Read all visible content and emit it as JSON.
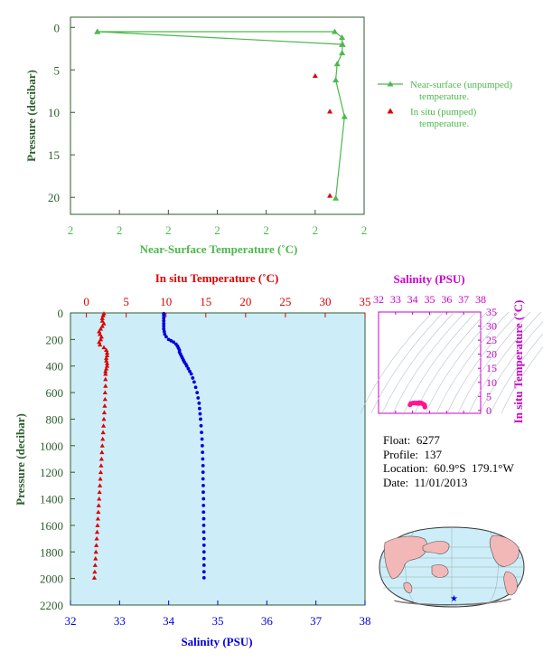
{
  "colors": {
    "green": "#4db84d",
    "axis_green": "#2e5e2e",
    "red": "#dd0000",
    "blue": "#0000dd",
    "magenta": "#cc00cc",
    "panel_bg": "#cdeef8",
    "land": "#f2b7b7"
  },
  "info": {
    "float": "Float:  6277",
    "profile": "Profile:  137",
    "location": "Location:  60.9°S  179.1°W",
    "date": "Date:  11/01/2013"
  },
  "footnote": "",
  "chart_data": [
    {
      "type": "line",
      "xlabel": "Near-Surface Temperature (˚C)",
      "ylabel": "Pressure (decibar)",
      "x_tick_labels": [
        "2",
        "2",
        "2",
        "2",
        "2",
        "2",
        "2"
      ],
      "y_ticks": [
        0,
        5,
        10,
        15,
        20
      ],
      "ylim": [
        22,
        -1.2
      ],
      "xlim": [
        1.8,
        2.4
      ],
      "y_inverted": true,
      "grid": false,
      "legend_position": "right",
      "series": [
        {
          "name": "Near-surface (unpumped) temperature.",
          "marker": "triangle-line",
          "points": [
            [
              1.855,
              0.5
            ],
            [
              2.34,
              0.5
            ],
            [
              2.355,
              1.2
            ],
            [
              2.355,
              2.0
            ],
            [
              1.855,
              0.5
            ],
            [
              2.356,
              2.0
            ],
            [
              2.355,
              3.0
            ],
            [
              2.345,
              4.3
            ],
            [
              2.342,
              6.2
            ],
            [
              2.36,
              10.5
            ],
            [
              2.342,
              20.1
            ]
          ]
        },
        {
          "name": "In situ (pumped) temperature.",
          "marker": "triangle",
          "points": [
            [
              2.3,
              5.7
            ],
            [
              2.33,
              9.9
            ],
            [
              2.33,
              19.8
            ]
          ]
        }
      ]
    },
    {
      "type": "scatter",
      "title_top": "In situ Temperature (˚C)",
      "xlabel": "Salinity (PSU)",
      "ylabel": "Pressure (decibar)",
      "top_axis_ticks": [
        0,
        5,
        10,
        15,
        20,
        25,
        30,
        35
      ],
      "bottom_axis_ticks": [
        32,
        33,
        34,
        35,
        36,
        37,
        38
      ],
      "y_ticks": [
        0,
        200,
        400,
        600,
        800,
        1000,
        1200,
        1400,
        1600,
        1800,
        2000,
        2200
      ],
      "temp_xlim": [
        -2,
        35
      ],
      "sal_xlim": [
        32,
        38
      ],
      "ylim": [
        2200,
        0
      ],
      "background": "light-blue",
      "series": [
        {
          "name": "In situ Temperature",
          "color": "red",
          "marker": "triangle",
          "points": [
            [
              2.2,
              5
            ],
            [
              2.1,
              20
            ],
            [
              2.0,
              40
            ],
            [
              2.0,
              60
            ],
            [
              2.2,
              80
            ],
            [
              2.0,
              100
            ],
            [
              1.8,
              120
            ],
            [
              1.6,
              140
            ],
            [
              1.7,
              160
            ],
            [
              1.9,
              180
            ],
            [
              1.8,
              200
            ],
            [
              1.6,
              220
            ],
            [
              1.7,
              240
            ],
            [
              2.2,
              260
            ],
            [
              2.5,
              280
            ],
            [
              2.6,
              300
            ],
            [
              2.6,
              320
            ],
            [
              2.5,
              340
            ],
            [
              2.5,
              360
            ],
            [
              2.6,
              380
            ],
            [
              2.6,
              400
            ],
            [
              2.5,
              420
            ],
            [
              2.4,
              440
            ],
            [
              2.4,
              460
            ],
            [
              2.4,
              500
            ],
            [
              2.4,
              550
            ],
            [
              2.35,
              600
            ],
            [
              2.35,
              650
            ],
            [
              2.3,
              700
            ],
            [
              2.25,
              750
            ],
            [
              2.2,
              800
            ],
            [
              2.15,
              850
            ],
            [
              2.1,
              900
            ],
            [
              2.05,
              950
            ],
            [
              2.0,
              1000
            ],
            [
              1.95,
              1050
            ],
            [
              1.9,
              1100
            ],
            [
              1.85,
              1150
            ],
            [
              1.8,
              1200
            ],
            [
              1.75,
              1250
            ],
            [
              1.7,
              1300
            ],
            [
              1.65,
              1350
            ],
            [
              1.6,
              1400
            ],
            [
              1.55,
              1450
            ],
            [
              1.5,
              1500
            ],
            [
              1.45,
              1550
            ],
            [
              1.4,
              1600
            ],
            [
              1.35,
              1650
            ],
            [
              1.3,
              1700
            ],
            [
              1.25,
              1750
            ],
            [
              1.2,
              1800
            ],
            [
              1.15,
              1850
            ],
            [
              1.1,
              1900
            ],
            [
              1.05,
              1950
            ],
            [
              1.0,
              1995
            ]
          ]
        },
        {
          "name": "Salinity",
          "color": "blue",
          "marker": "dot",
          "points": [
            [
              33.9,
              5
            ],
            [
              33.9,
              20
            ],
            [
              33.9,
              40
            ],
            [
              33.9,
              60
            ],
            [
              33.9,
              80
            ],
            [
              33.9,
              100
            ],
            [
              33.9,
              120
            ],
            [
              33.91,
              140
            ],
            [
              33.92,
              160
            ],
            [
              33.95,
              180
            ],
            [
              34.0,
              200
            ],
            [
              34.05,
              210
            ],
            [
              34.1,
              220
            ],
            [
              34.15,
              235
            ],
            [
              34.18,
              250
            ],
            [
              34.2,
              265
            ],
            [
              34.22,
              280
            ],
            [
              34.22,
              295
            ],
            [
              34.24,
              310
            ],
            [
              34.26,
              325
            ],
            [
              34.28,
              340
            ],
            [
              34.3,
              355
            ],
            [
              34.32,
              370
            ],
            [
              34.35,
              385
            ],
            [
              34.37,
              400
            ],
            [
              34.4,
              420
            ],
            [
              34.43,
              440
            ],
            [
              34.46,
              460
            ],
            [
              34.49,
              490
            ],
            [
              34.52,
              520
            ],
            [
              34.55,
              560
            ],
            [
              34.58,
              600
            ],
            [
              34.6,
              640
            ],
            [
              34.62,
              680
            ],
            [
              34.63,
              720
            ],
            [
              34.64,
              760
            ],
            [
              34.65,
              800
            ],
            [
              34.66,
              850
            ],
            [
              34.67,
              900
            ],
            [
              34.68,
              950
            ],
            [
              34.685,
              1000
            ],
            [
              34.69,
              1050
            ],
            [
              34.695,
              1100
            ],
            [
              34.7,
              1150
            ],
            [
              34.7,
              1200
            ],
            [
              34.7,
              1250
            ],
            [
              34.705,
              1300
            ],
            [
              34.705,
              1350
            ],
            [
              34.71,
              1400
            ],
            [
              34.71,
              1450
            ],
            [
              34.71,
              1500
            ],
            [
              34.715,
              1550
            ],
            [
              34.715,
              1600
            ],
            [
              34.715,
              1650
            ],
            [
              34.72,
              1700
            ],
            [
              34.72,
              1750
            ],
            [
              34.72,
              1800
            ],
            [
              34.72,
              1850
            ],
            [
              34.72,
              1900
            ],
            [
              34.72,
              1950
            ],
            [
              34.72,
              1995
            ]
          ]
        }
      ]
    },
    {
      "type": "scatter",
      "title": "Salinity (PSU)",
      "ylabel": "In situ Temperature (˚C)",
      "x_ticks": [
        32,
        33,
        34,
        35,
        36,
        37,
        38
      ],
      "y_ticks": [
        0,
        5,
        10,
        15,
        20,
        25,
        30,
        35
      ],
      "xlim": [
        32,
        38
      ],
      "ylim": [
        -1,
        35
      ],
      "grid": false,
      "points": [
        [
          33.85,
          2.0
        ],
        [
          33.9,
          2.5
        ],
        [
          34.0,
          2.6
        ],
        [
          34.1,
          2.7
        ],
        [
          34.2,
          2.6
        ],
        [
          34.3,
          2.7
        ],
        [
          34.4,
          2.8
        ],
        [
          34.5,
          2.7
        ],
        [
          34.6,
          2.4
        ],
        [
          34.65,
          2.2
        ],
        [
          34.7,
          2.0
        ],
        [
          34.72,
          1.5
        ],
        [
          34.72,
          1.2
        ],
        [
          34.7,
          1.8
        ],
        [
          34.55,
          2.5
        ],
        [
          34.45,
          2.6
        ],
        [
          34.35,
          2.5
        ],
        [
          34.25,
          2.6
        ]
      ]
    }
  ]
}
